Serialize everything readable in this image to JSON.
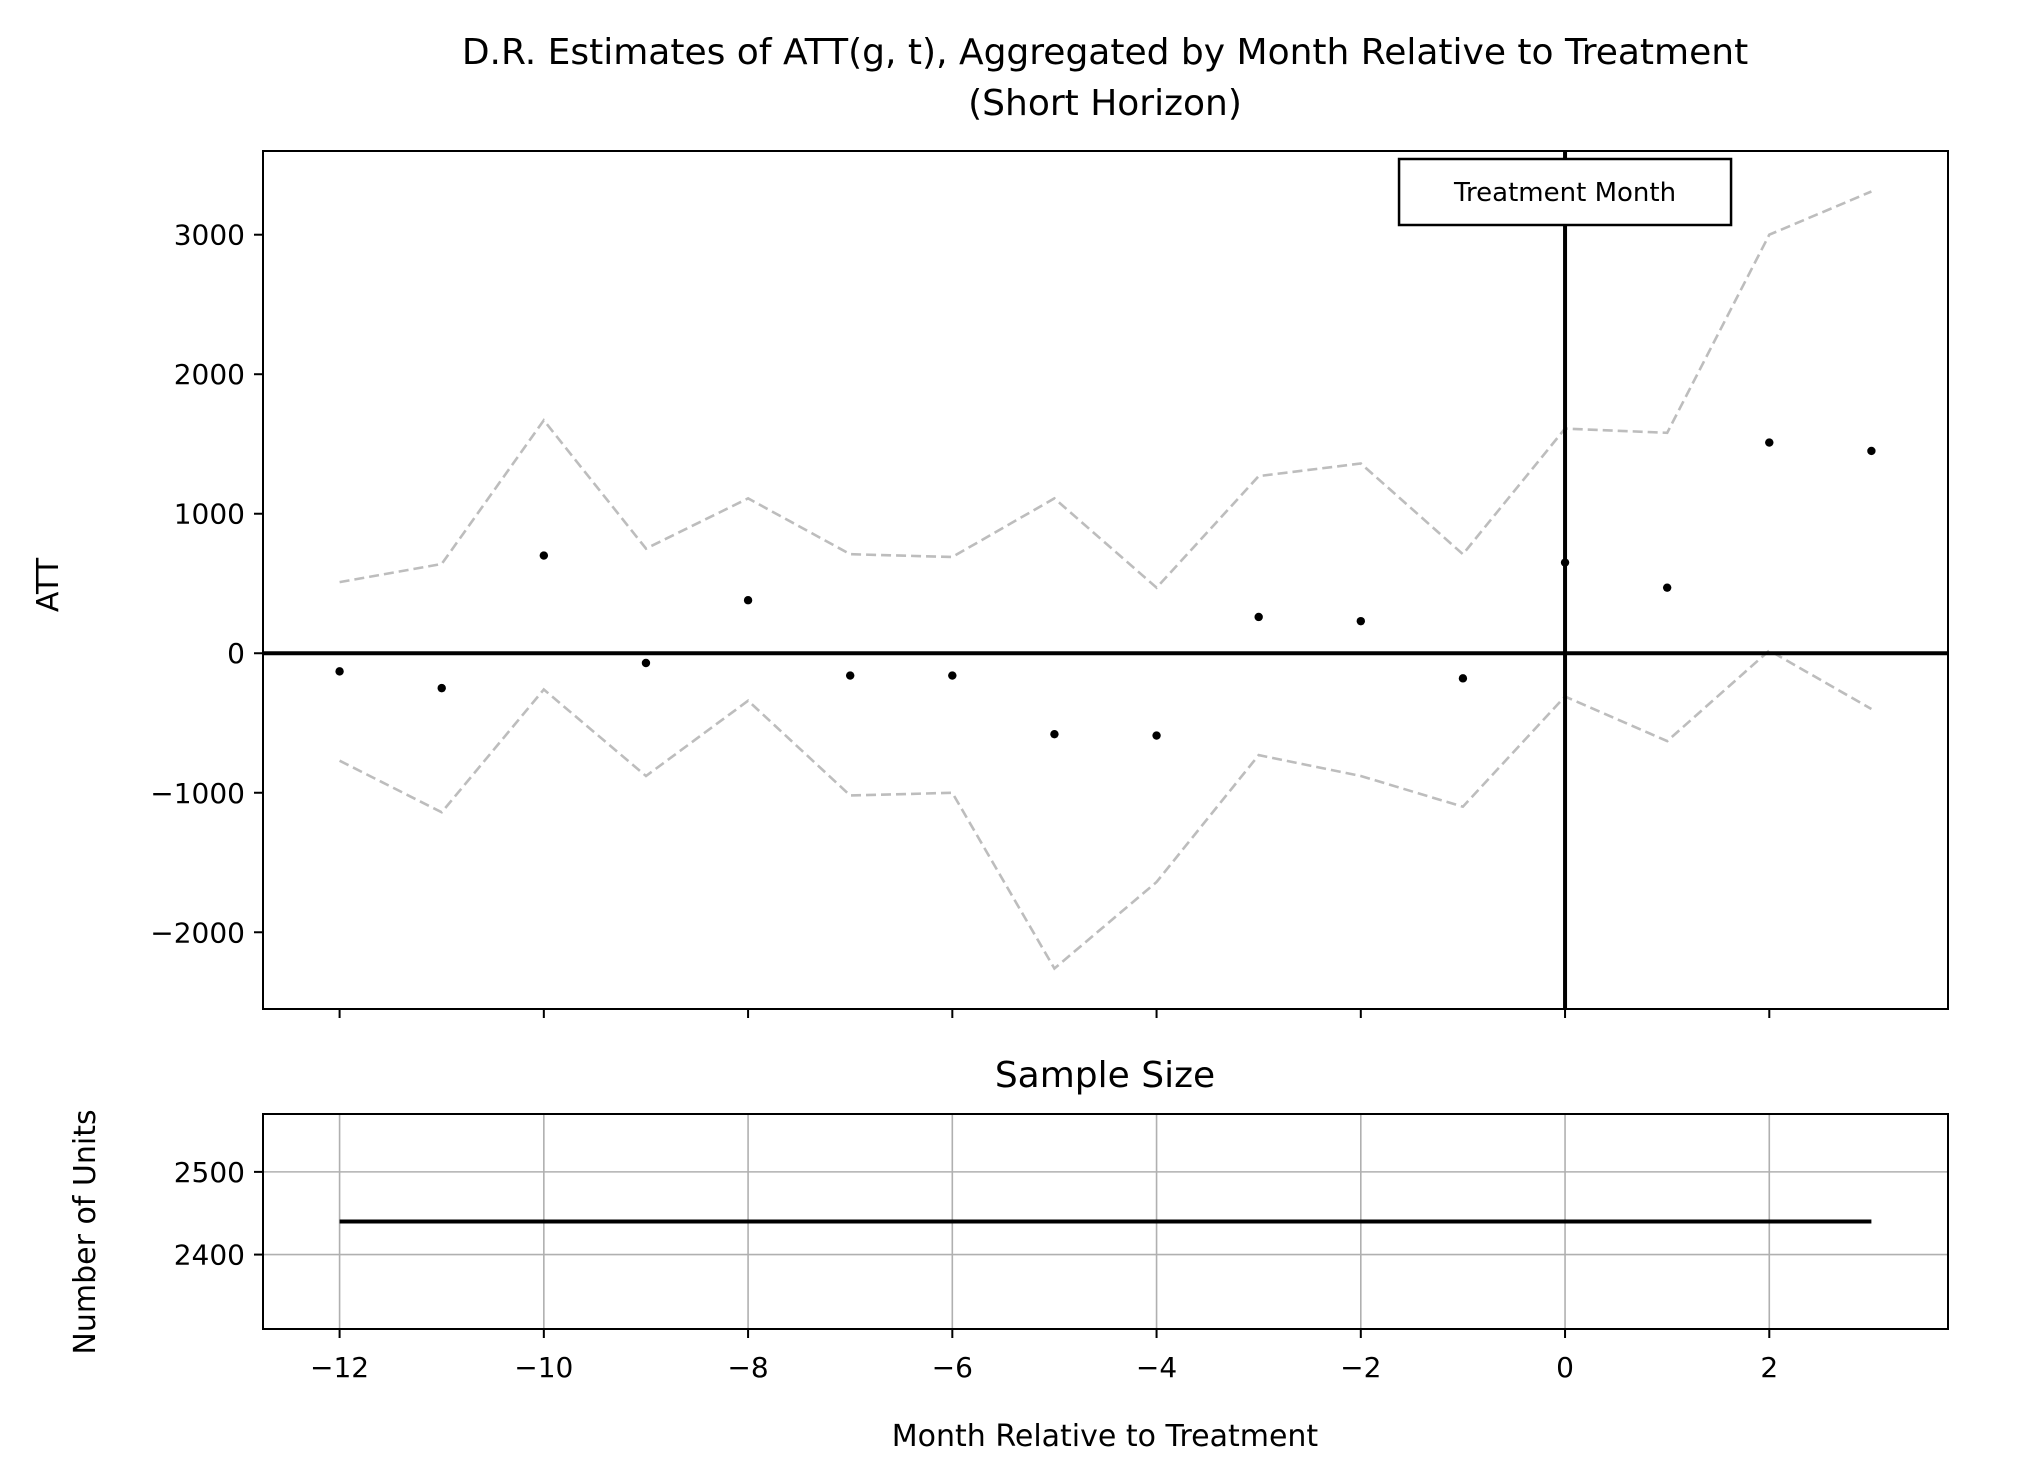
{
  "chart_data": [
    {
      "type": "scatter",
      "title": "D.R. Estimates of ATT(g, t), Aggregated by Month Relative to Treatment",
      "subtitle": "(Short Horizon)",
      "xlabel": "",
      "ylabel": "ATT",
      "xlim": [
        -12.75,
        3.75
      ],
      "ylim": [
        -2550,
        3600
      ],
      "x_ticks": [
        -12,
        -10,
        -8,
        -6,
        -4,
        -2,
        0,
        2
      ],
      "y_ticks": [
        -2000,
        -1000,
        0,
        1000,
        2000,
        3000
      ],
      "y_tick_labels": [
        "−2000",
        "−1000",
        "0",
        "1000",
        "2000",
        "3000"
      ],
      "grid": false,
      "x": [
        -12,
        -11,
        -10,
        -9,
        -8,
        -7,
        -6,
        -5,
        -4,
        -3,
        -2,
        -1,
        0,
        1,
        2,
        3
      ],
      "series": [
        {
          "role": "estimate",
          "style": "points",
          "values": [
            -130,
            -250,
            700,
            -70,
            380,
            -160,
            -160,
            -580,
            -590,
            260,
            230,
            -180,
            650,
            470,
            1510,
            1450
          ]
        },
        {
          "role": "upper",
          "style": "dashed",
          "values": [
            510,
            640,
            1670,
            750,
            1110,
            710,
            690,
            1110,
            470,
            1270,
            1360,
            710,
            1610,
            1580,
            3000,
            3310
          ]
        },
        {
          "role": "lower",
          "style": "dashed",
          "values": [
            -770,
            -1140,
            -260,
            -880,
            -340,
            -1020,
            -1000,
            -2260,
            -1640,
            -730,
            -880,
            -1100,
            -310,
            -630,
            20,
            -400
          ]
        }
      ],
      "reference_lines": {
        "horizontal_at": 0,
        "vertical_at": 0
      },
      "annotation": {
        "text": "Treatment Month",
        "x": 0
      }
    },
    {
      "type": "line",
      "title": "Sample Size",
      "xlabel": "Month Relative to Treatment",
      "ylabel": "Number of Units",
      "xlim": [
        -12.75,
        3.75
      ],
      "ylim": [
        2310,
        2570
      ],
      "x_ticks": [
        -12,
        -10,
        -8,
        -6,
        -4,
        -2,
        0,
        2
      ],
      "x_tick_labels": [
        "−12",
        "−10",
        "−8",
        "−6",
        "−4",
        "−2",
        "0",
        "2"
      ],
      "y_ticks": [
        2400,
        2500
      ],
      "y_tick_labels": [
        "2400",
        "2500"
      ],
      "grid": true,
      "x": [
        -12,
        -11,
        -10,
        -9,
        -8,
        -7,
        -6,
        -5,
        -4,
        -3,
        -2,
        -1,
        0,
        1,
        2,
        3
      ],
      "values": [
        2440,
        2440,
        2440,
        2440,
        2440,
        2440,
        2440,
        2440,
        2440,
        2440,
        2440,
        2440,
        2440,
        2440,
        2440,
        2440
      ]
    }
  ]
}
